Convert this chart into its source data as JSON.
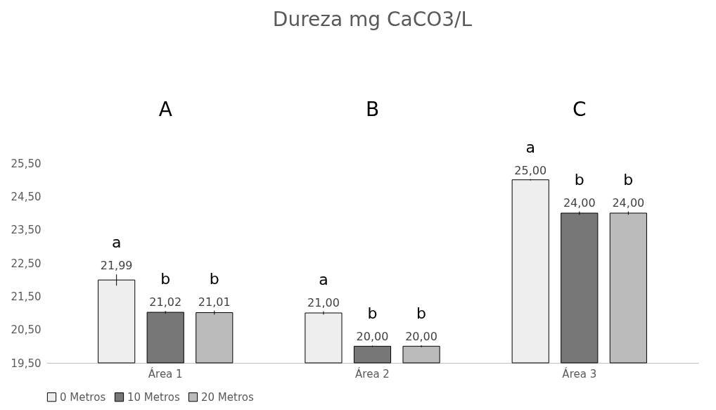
{
  "chart_data": {
    "type": "bar",
    "title": "Dureza mg CaCO3/L",
    "categories": [
      "Área 1",
      "Área 2",
      "Área 3"
    ],
    "series": [
      {
        "name": "0 Metros",
        "color": "#eeeeee",
        "values": [
          21.99,
          21.0,
          25.0
        ],
        "errors": [
          0.17,
          0.05,
          0.02
        ],
        "value_labels": [
          "21,99",
          "21,00",
          "25,00"
        ]
      },
      {
        "name": "10 Metros",
        "color": "#777777",
        "values": [
          21.02,
          20.0,
          24.0
        ],
        "errors": [
          0.04,
          0.02,
          0.05
        ],
        "value_labels": [
          "21,02",
          "20,00",
          "24,00"
        ]
      },
      {
        "name": "20 Metros",
        "color": "#bbbbbb",
        "values": [
          21.01,
          20.0,
          24.0
        ],
        "errors": [
          0.06,
          0.03,
          0.05
        ],
        "value_labels": [
          "21,01",
          "20,00",
          "24,00"
        ]
      }
    ],
    "ylim": [
      19.5,
      25.5
    ],
    "yticks": [
      {
        "value": 19.5,
        "label": "19,50"
      },
      {
        "value": 20.5,
        "label": "20,50"
      },
      {
        "value": 21.5,
        "label": "21,50"
      },
      {
        "value": 22.5,
        "label": "22,50"
      },
      {
        "value": 23.5,
        "label": "23,50"
      },
      {
        "value": 24.5,
        "label": "24,50"
      },
      {
        "value": 25.5,
        "label": "25,50"
      }
    ],
    "annotations": [
      "a",
      "b",
      "b",
      "A",
      "a",
      "b",
      "b",
      "B",
      "a",
      "b",
      "b",
      "C"
    ],
    "legend": "bottom",
    "grid": false
  }
}
